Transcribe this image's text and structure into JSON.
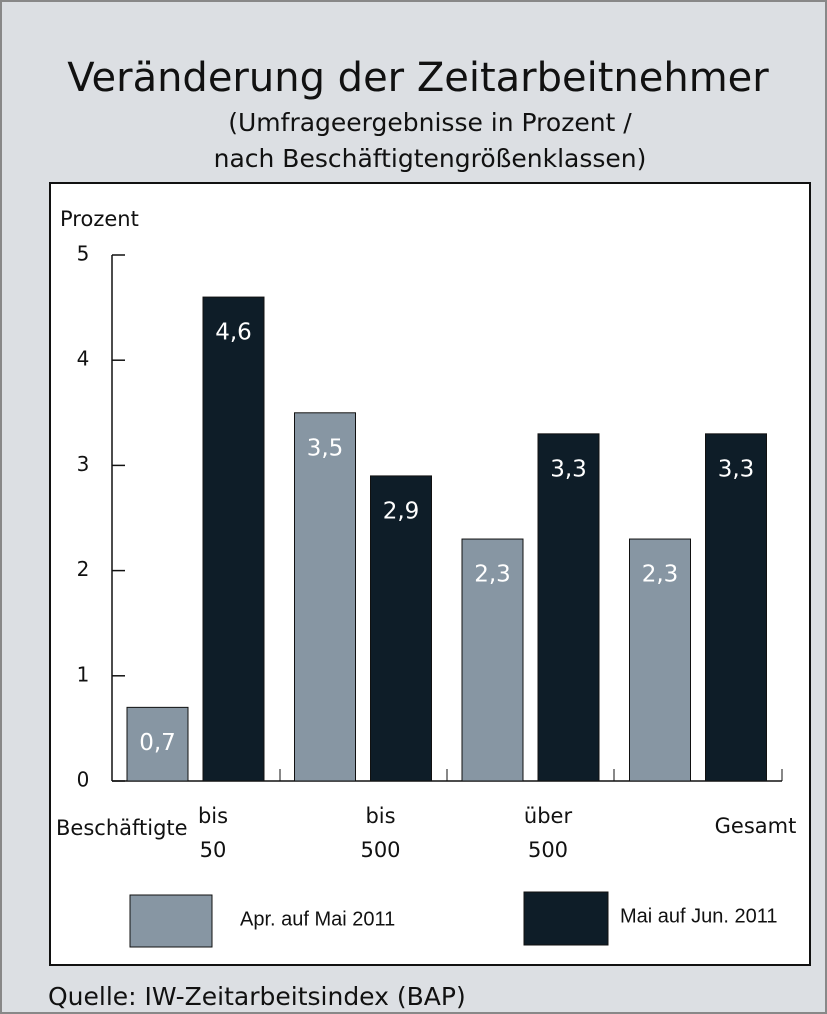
{
  "chart_data": {
    "type": "bar",
    "title": "Veränderung der Zeitarbeitnehmer",
    "subtitle": [
      "(Umfrageergebnisse in Prozent /",
      "nach Beschäftigtengrößenklassen)"
    ],
    "y_label": "Prozent",
    "x_label": "Beschäftigte",
    "categories": [
      "bis 50",
      "bis 500",
      "über 500",
      "Gesamt"
    ],
    "series": [
      {
        "name": "Apr. auf Mai 2011",
        "color": "#8796a3",
        "values": [
          0.7,
          3.5,
          2.3,
          2.3
        ],
        "value_labels": [
          "0,7",
          "3,5",
          "2,3",
          "2,3"
        ]
      },
      {
        "name": "Mai auf Jun. 2011",
        "color": "#0e1d28",
        "values": [
          4.6,
          2.9,
          3.3,
          3.3
        ],
        "value_labels": [
          "4,6",
          "2,9",
          "3,3",
          "3,3"
        ]
      }
    ],
    "ylim": [
      0,
      5
    ],
    "yticks": [
      0,
      1,
      2,
      3,
      4,
      5
    ],
    "source": "Quelle: IW-Zeitarbeitsindex (BAP)"
  }
}
